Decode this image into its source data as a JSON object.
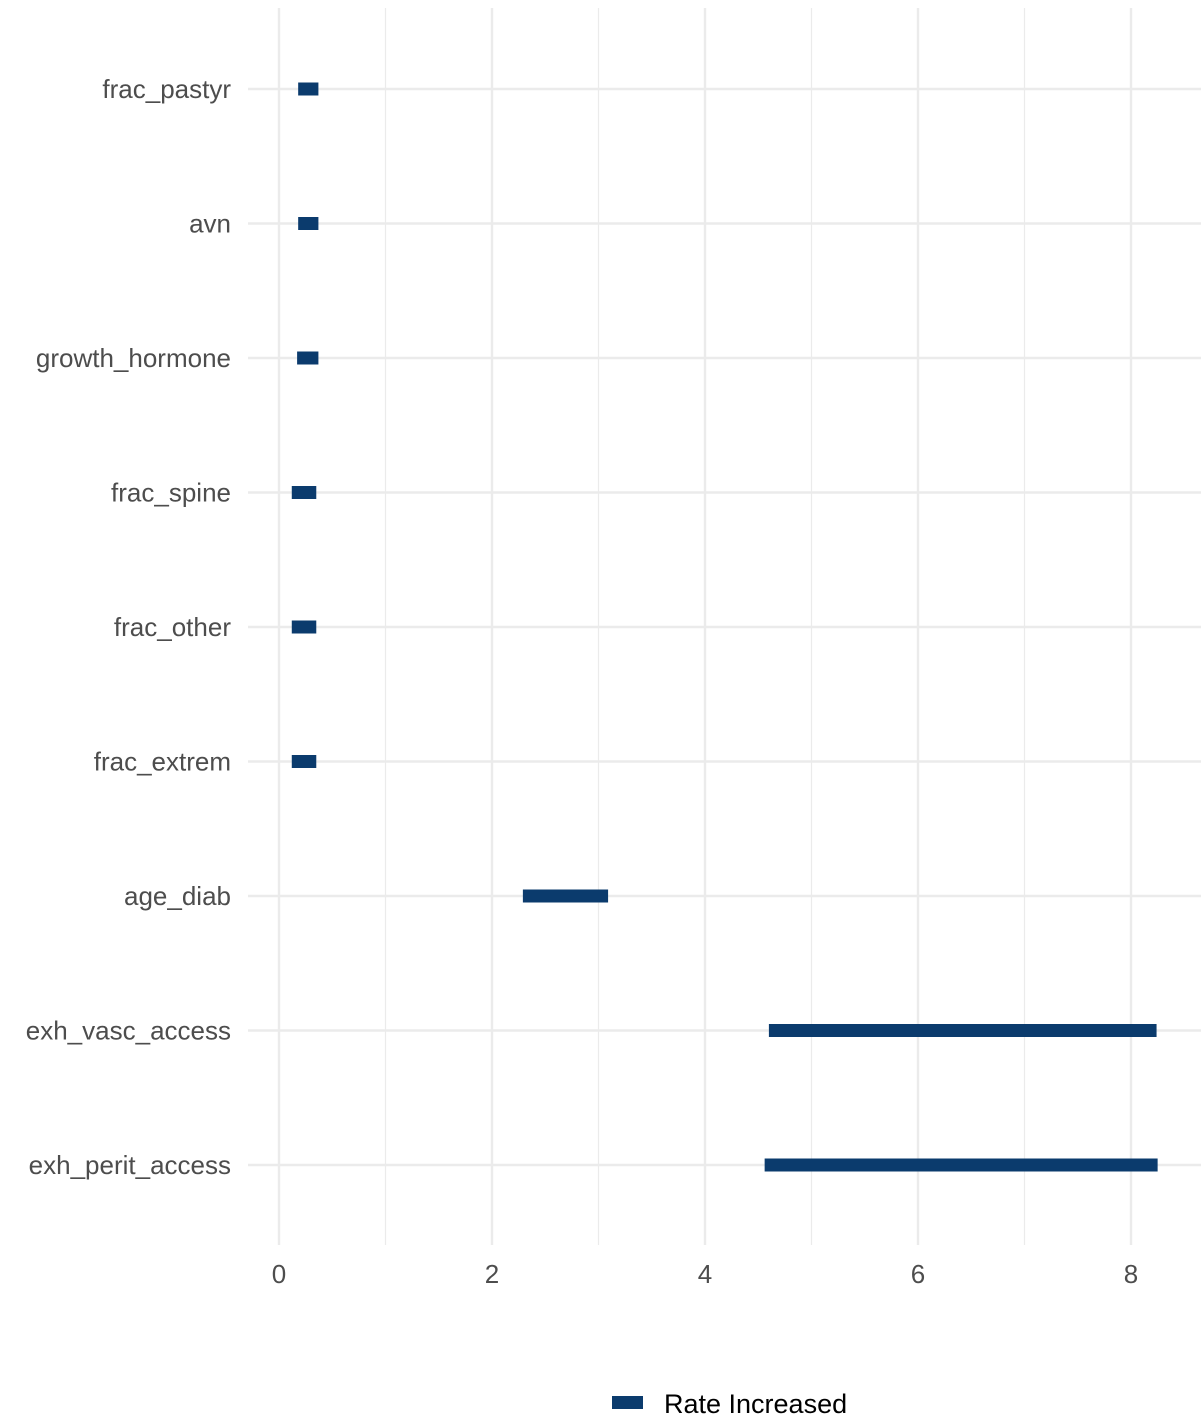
{
  "chart_data": {
    "type": "bar",
    "orientation": "horizontal-range",
    "categories": [
      "frac_pastyr",
      "avn",
      "growth_hormone",
      "frac_spine",
      "frac_other",
      "frac_extrem",
      "age_diab",
      "exh_vasc_access",
      "exh_perit_access"
    ],
    "series": [
      {
        "name": "Rate Increased",
        "color": "#0b3b6d",
        "ranges": [
          [
            0.18,
            0.37
          ],
          [
            0.18,
            0.37
          ],
          [
            0.17,
            0.37
          ],
          [
            0.12,
            0.35
          ],
          [
            0.12,
            0.35
          ],
          [
            0.12,
            0.35
          ],
          [
            2.29,
            3.09
          ],
          [
            4.6,
            8.24
          ],
          [
            4.56,
            8.25
          ]
        ]
      }
    ],
    "xlim": [
      -0.3,
      8.65
    ],
    "xticks": [
      "0",
      "2",
      "4",
      "6",
      "8"
    ],
    "grid": true,
    "legend_position": "bottom",
    "title": "",
    "xlabel": "",
    "ylabel": ""
  }
}
